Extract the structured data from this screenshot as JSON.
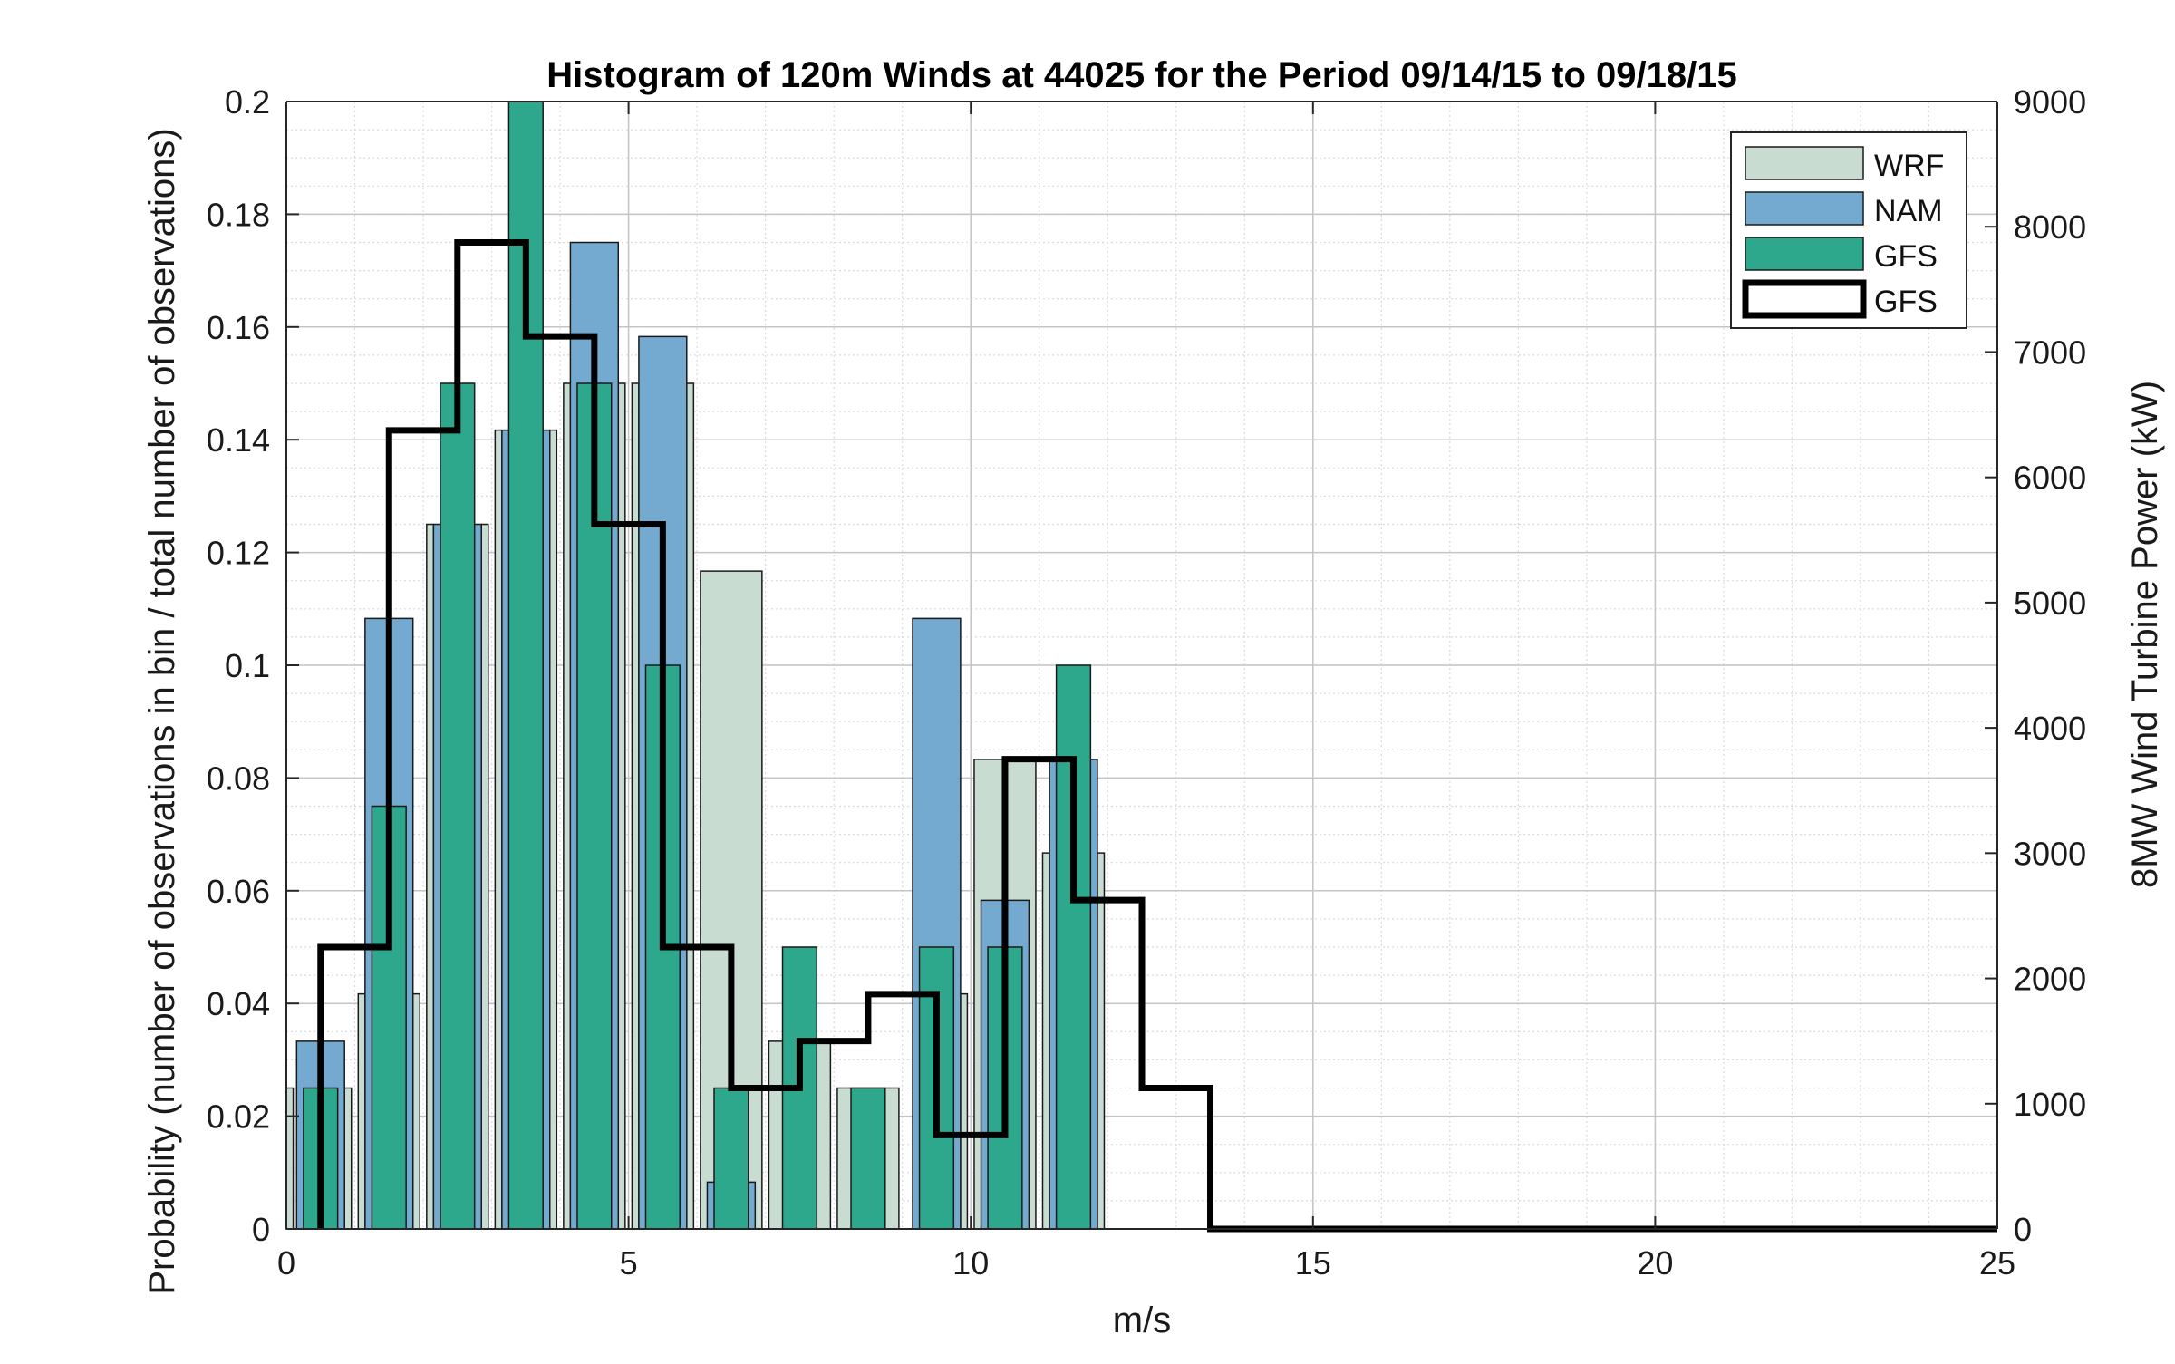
{
  "chart_data": {
    "type": "bar",
    "title": "Histogram of 120m Winds at 44025 for the Period 09/14/15 to 09/18/15",
    "xlabel": "m/s",
    "ylabel_left": "Probability (number of observations in bin / total number of observations)",
    "ylabel_right": "8MW Wind Turbine Power (kW)",
    "xlim": [
      0,
      25
    ],
    "ylim_left": [
      0,
      0.2
    ],
    "ylim_right": [
      0,
      9000
    ],
    "xticks": [
      "0",
      "5",
      "10",
      "15",
      "20",
      "25"
    ],
    "yticks_left": [
      "0",
      "0.02",
      "0.04",
      "0.06",
      "0.08",
      "0.1",
      "0.12",
      "0.14",
      "0.16",
      "0.18",
      "0.2"
    ],
    "yticks_right": [
      "0",
      "1000",
      "2000",
      "3000",
      "4000",
      "5000",
      "6000",
      "7000",
      "8000",
      "9000"
    ],
    "grid": true,
    "legend_position": "top-right",
    "series": [
      {
        "name": "WRF",
        "kind": "bar",
        "axis": "left",
        "color": "#c9dcd1",
        "bars": [
          {
            "x0": 0.0,
            "x1": 0.1,
            "y": 0.025
          },
          {
            "x0": 0.85,
            "x1": 0.95,
            "y": 0.025
          },
          {
            "x0": 1.05,
            "x1": 1.15,
            "y": 0.0417
          },
          {
            "x0": 1.85,
            "x1": 1.95,
            "y": 0.0417
          },
          {
            "x0": 2.05,
            "x1": 2.15,
            "y": 0.125
          },
          {
            "x0": 2.85,
            "x1": 2.95,
            "y": 0.125
          },
          {
            "x0": 3.05,
            "x1": 3.15,
            "y": 0.1417
          },
          {
            "x0": 3.85,
            "x1": 3.95,
            "y": 0.1417
          },
          {
            "x0": 4.05,
            "x1": 4.15,
            "y": 0.15
          },
          {
            "x0": 4.85,
            "x1": 4.95,
            "y": 0.15
          },
          {
            "x0": 5.05,
            "x1": 5.15,
            "y": 0.15
          },
          {
            "x0": 5.85,
            "x1": 5.95,
            "y": 0.15
          },
          {
            "x0": 6.05,
            "x1": 6.95,
            "y": 0.1167
          },
          {
            "x0": 7.05,
            "x1": 7.95,
            "y": 0.0333
          },
          {
            "x0": 8.05,
            "x1": 8.95,
            "y": 0.025
          },
          {
            "x0": 9.85,
            "x1": 9.95,
            "y": 0.0417
          },
          {
            "x0": 10.05,
            "x1": 10.95,
            "y": 0.0833
          },
          {
            "x0": 11.05,
            "x1": 11.15,
            "y": 0.0667
          },
          {
            "x0": 11.85,
            "x1": 11.95,
            "y": 0.0667
          }
        ]
      },
      {
        "name": "NAM",
        "kind": "bar",
        "axis": "left",
        "color": "#74a9d0",
        "bars": [
          {
            "x0": 0.15,
            "x1": 0.85,
            "y": 0.0333
          },
          {
            "x0": 1.15,
            "x1": 1.85,
            "y": 0.1083
          },
          {
            "x0": 2.15,
            "x1": 2.85,
            "y": 0.125
          },
          {
            "x0": 3.15,
            "x1": 3.85,
            "y": 0.1417
          },
          {
            "x0": 4.15,
            "x1": 4.85,
            "y": 0.175
          },
          {
            "x0": 5.15,
            "x1": 5.85,
            "y": 0.1583
          },
          {
            "x0": 6.15,
            "x1": 6.85,
            "y": 0.0083
          },
          {
            "x0": 9.15,
            "x1": 9.85,
            "y": 0.1083
          },
          {
            "x0": 10.15,
            "x1": 10.85,
            "y": 0.0583
          },
          {
            "x0": 11.15,
            "x1": 11.85,
            "y": 0.0833
          }
        ]
      },
      {
        "name": "GFS",
        "kind": "bar",
        "axis": "left",
        "color": "#2ea88c",
        "bars": [
          {
            "x0": 0.25,
            "x1": 0.75,
            "y": 0.025
          },
          {
            "x0": 1.25,
            "x1": 1.75,
            "y": 0.075
          },
          {
            "x0": 2.25,
            "x1": 2.75,
            "y": 0.15
          },
          {
            "x0": 3.25,
            "x1": 3.75,
            "y": 0.2
          },
          {
            "x0": 4.25,
            "x1": 4.75,
            "y": 0.15
          },
          {
            "x0": 5.25,
            "x1": 5.75,
            "y": 0.1
          },
          {
            "x0": 6.25,
            "x1": 6.75,
            "y": 0.025
          },
          {
            "x0": 7.25,
            "x1": 7.75,
            "y": 0.05
          },
          {
            "x0": 8.25,
            "x1": 8.75,
            "y": 0.025
          },
          {
            "x0": 9.25,
            "x1": 9.75,
            "y": 0.05
          },
          {
            "x0": 10.25,
            "x1": 10.75,
            "y": 0.05
          },
          {
            "x0": 11.25,
            "x1": 11.75,
            "y": 0.1
          }
        ]
      },
      {
        "name": "GFS",
        "kind": "step",
        "axis": "right",
        "color": "#000000",
        "points": [
          [
            0.5,
            0
          ],
          [
            0.5,
            2250
          ],
          [
            1.5,
            2250
          ],
          [
            1.5,
            6375
          ],
          [
            2.5,
            6375
          ],
          [
            2.5,
            7875
          ],
          [
            3.5,
            7875
          ],
          [
            3.5,
            7125
          ],
          [
            4.5,
            7125
          ],
          [
            4.5,
            5625
          ],
          [
            5.5,
            5625
          ],
          [
            5.5,
            2250
          ],
          [
            6.5,
            2250
          ],
          [
            6.5,
            1125
          ],
          [
            7.5,
            1125
          ],
          [
            7.5,
            1500
          ],
          [
            8.5,
            1500
          ],
          [
            8.5,
            1875
          ],
          [
            9.5,
            1875
          ],
          [
            9.5,
            750
          ],
          [
            10.5,
            750
          ],
          [
            10.5,
            3750
          ],
          [
            11.5,
            3750
          ],
          [
            11.5,
            2625
          ],
          [
            12.5,
            2625
          ],
          [
            12.5,
            1125
          ],
          [
            13.5,
            1125
          ],
          [
            13.5,
            0
          ],
          [
            25,
            0
          ]
        ]
      }
    ]
  }
}
